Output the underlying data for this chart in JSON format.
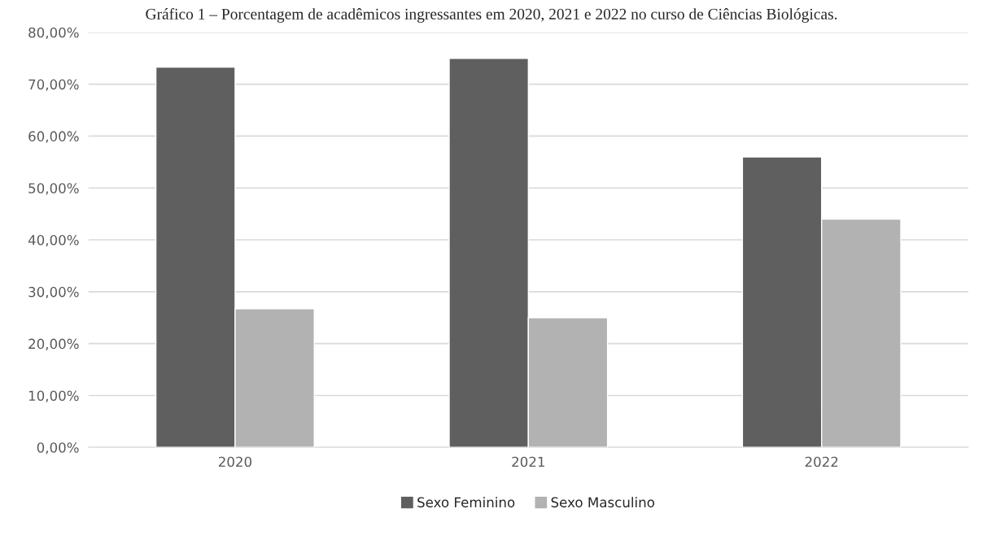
{
  "chart_data": {
    "type": "bar",
    "title": "Gráfico 1 – Porcentagem de acadêmicos ingressantes em 2020, 2021 e 2022 no curso de Ciências Biológicas.",
    "categories": [
      "2020",
      "2021",
      "2022"
    ],
    "series": [
      {
        "name": "Sexo Feminino",
        "color": "#5f5f5f",
        "values": [
          73.3,
          75.0,
          56.0
        ]
      },
      {
        "name": "Sexo Masculino",
        "color": "#b2b2b2",
        "values": [
          26.7,
          25.0,
          44.0
        ]
      }
    ],
    "ylim": [
      0,
      80
    ],
    "yticks": [
      {
        "value": 0,
        "label": "0,00%"
      },
      {
        "value": 10,
        "label": "10,00%"
      },
      {
        "value": 20,
        "label": "20,00%"
      },
      {
        "value": 30,
        "label": "30,00%"
      },
      {
        "value": 40,
        "label": "40,00%"
      },
      {
        "value": 50,
        "label": "50,00%"
      },
      {
        "value": 60,
        "label": "60,00%"
      },
      {
        "value": 70,
        "label": "70,00%"
      },
      {
        "value": 80,
        "label": "80,00%"
      }
    ],
    "grid": "y",
    "legend": "bottom"
  }
}
